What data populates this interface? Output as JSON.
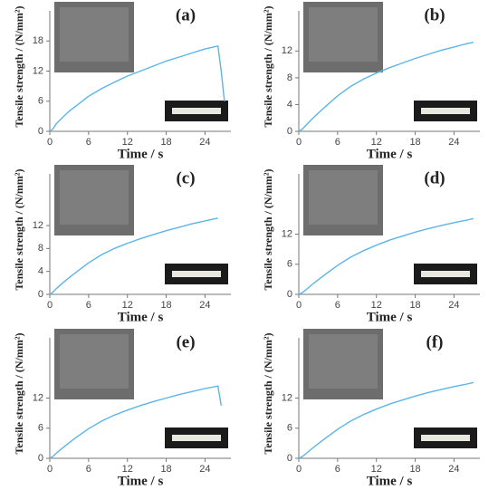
{
  "chart_data": [
    {
      "type": "line",
      "title": "(a)",
      "x_label": "Time / s",
      "y_label": "Tensile strength / (N/mm²)",
      "color": "#5bb5e6",
      "x": [
        0,
        0.5,
        1,
        2,
        3,
        4,
        6,
        8,
        10,
        12,
        14,
        16,
        18,
        20,
        22,
        24,
        26,
        26.5,
        27
      ],
      "values": [
        0,
        0.5,
        1.5,
        2.8,
        4,
        5,
        7,
        8.5,
        9.8,
        11,
        12,
        13,
        14,
        14.8,
        15.6,
        16.4,
        17,
        12,
        6
      ],
      "xlim": [
        0,
        28
      ],
      "xticks": [
        0,
        6,
        12,
        18,
        24
      ],
      "ylim": [
        0,
        24
      ],
      "yticks": [
        0,
        6,
        12,
        18
      ]
    },
    {
      "type": "line",
      "title": "(b)",
      "x_label": "Time / s",
      "y_label": "Tensile strength / (N/mm²)",
      "color": "#5bb5e6",
      "x": [
        0,
        0.5,
        1,
        2,
        3,
        4,
        6,
        8,
        10,
        12,
        14,
        16,
        18,
        20,
        22,
        24,
        26,
        27
      ],
      "values": [
        0,
        0.3,
        0.8,
        1.8,
        2.7,
        3.6,
        5.3,
        6.7,
        7.8,
        8.7,
        9.5,
        10.2,
        10.9,
        11.5,
        12.1,
        12.6,
        13.1,
        13.3
      ],
      "xlim": [
        0,
        28
      ],
      "xticks": [
        0,
        6,
        12,
        18,
        24
      ],
      "ylim": [
        0,
        18
      ],
      "yticks": [
        0,
        4,
        8,
        12
      ]
    },
    {
      "type": "line",
      "title": "(c)",
      "x_label": "Time / s",
      "y_label": "Tensile strength / (N/mm²)",
      "color": "#5bb5e6",
      "x": [
        0,
        0.5,
        1,
        2,
        3,
        4,
        6,
        8,
        10,
        12,
        14,
        16,
        18,
        20,
        22,
        24,
        26
      ],
      "values": [
        0,
        0.4,
        1.0,
        2.0,
        2.9,
        3.8,
        5.5,
        6.9,
        8.0,
        8.9,
        9.7,
        10.4,
        11.1,
        11.7,
        12.3,
        12.8,
        13.3
      ],
      "xlim": [
        0,
        28
      ],
      "xticks": [
        0,
        6,
        12,
        18,
        24
      ],
      "ylim": [
        0,
        21
      ],
      "yticks": [
        0,
        4,
        8,
        12
      ]
    },
    {
      "type": "line",
      "title": "(d)",
      "x_label": "Time / s",
      "y_label": "Tensile strength / (N/mm²)",
      "color": "#5bb5e6",
      "x": [
        0,
        0.5,
        1,
        2,
        3,
        4,
        6,
        8,
        10,
        12,
        14,
        16,
        18,
        20,
        22,
        24,
        26,
        27
      ],
      "values": [
        0,
        0.3,
        0.8,
        1.9,
        2.9,
        3.9,
        5.8,
        7.4,
        8.7,
        9.8,
        10.8,
        11.6,
        12.4,
        13.1,
        13.7,
        14.3,
        14.8,
        15.1
      ],
      "xlim": [
        0,
        28
      ],
      "xticks": [
        0,
        6,
        12,
        18,
        24
      ],
      "ylim": [
        0,
        24
      ],
      "yticks": [
        0,
        6,
        12
      ]
    },
    {
      "type": "line",
      "title": "(e)",
      "x_label": "Time / s",
      "y_label": "Tensile strength / (N/mm²)",
      "color": "#5bb5e6",
      "x": [
        0,
        0.5,
        1,
        2,
        3,
        4,
        6,
        8,
        10,
        12,
        14,
        16,
        18,
        20,
        22,
        24,
        26,
        26.5
      ],
      "values": [
        0,
        0.4,
        1.0,
        2.1,
        3.1,
        4.1,
        5.9,
        7.4,
        8.6,
        9.6,
        10.5,
        11.3,
        12.0,
        12.7,
        13.3,
        13.9,
        14.4,
        10.5
      ],
      "xlim": [
        0,
        28
      ],
      "xticks": [
        0,
        6,
        12,
        18,
        24
      ],
      "ylim": [
        0,
        24
      ],
      "yticks": [
        0,
        6,
        12
      ]
    },
    {
      "type": "line",
      "title": "(f)",
      "x_label": "Time / s",
      "y_label": "Tensile strength / (N/mm²)",
      "color": "#5bb5e6",
      "x": [
        0,
        0.5,
        1,
        2,
        3,
        4,
        6,
        8,
        10,
        12,
        14,
        16,
        18,
        20,
        22,
        24,
        26,
        27
      ],
      "values": [
        0,
        0.3,
        0.8,
        1.9,
        2.9,
        3.9,
        5.8,
        7.4,
        8.7,
        9.8,
        10.8,
        11.6,
        12.4,
        13.1,
        13.7,
        14.3,
        14.8,
        15.1
      ],
      "xlim": [
        0,
        28
      ],
      "xticks": [
        0,
        6,
        12,
        18,
        24
      ],
      "ylim": [
        0,
        24
      ],
      "yticks": [
        0,
        6,
        12
      ]
    }
  ]
}
